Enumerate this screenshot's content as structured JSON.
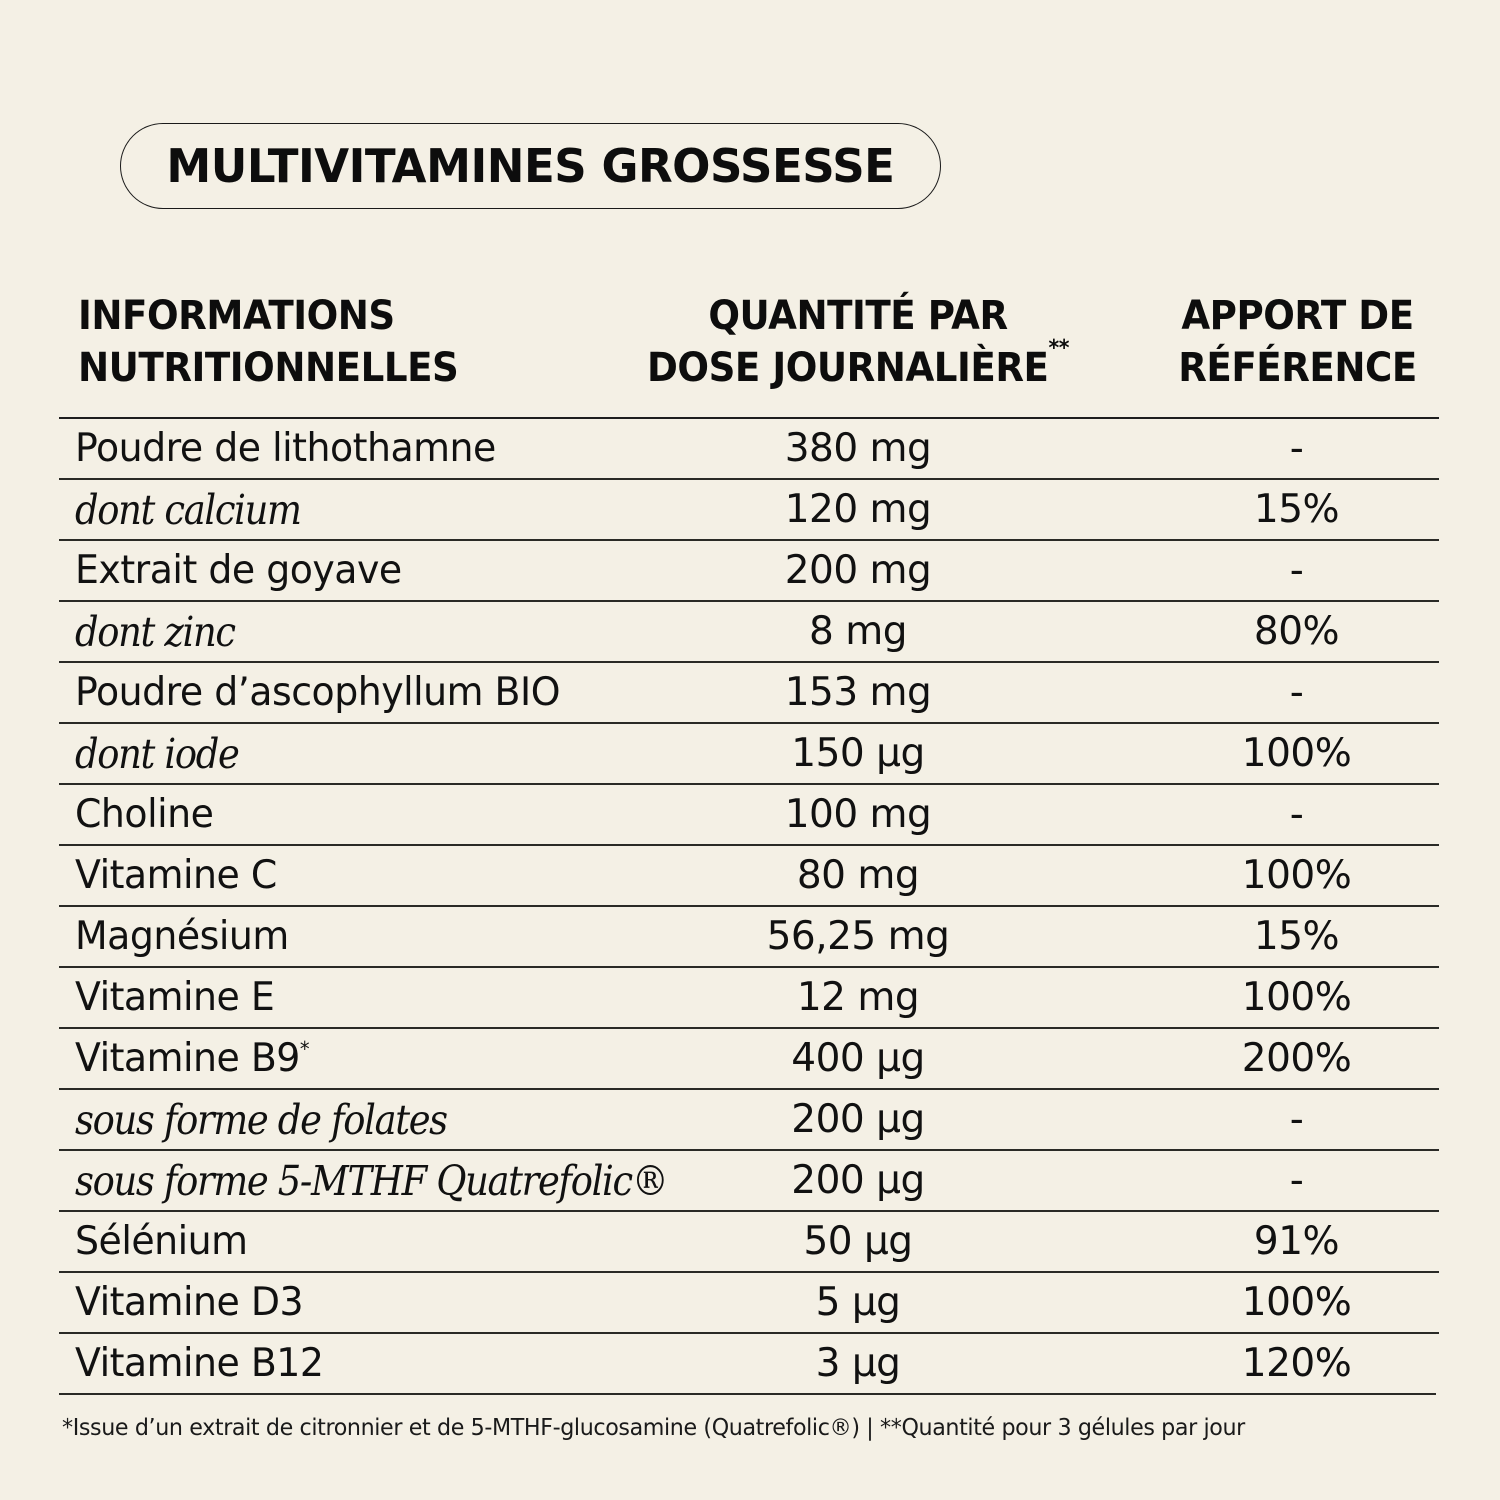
{
  "title": "MULTIVITAMINES GROSSESSE",
  "header": {
    "col_name": [
      "INFORMATIONS",
      "NUTRITIONNELLES"
    ],
    "col_qty": [
      "QUANTITÉ PAR",
      "DOSE JOURNALIÈRE"
    ],
    "col_qty_mark": "**",
    "col_ref": [
      "APPORT DE",
      "RÉFÉRENCE"
    ]
  },
  "rows": [
    {
      "name": "Poudre de lithothamne",
      "mark": "",
      "italic": false,
      "qty": "380 mg",
      "ref": "-"
    },
    {
      "name": "dont calcium",
      "mark": "",
      "italic": true,
      "qty": "120 mg",
      "ref": "15%"
    },
    {
      "name": "Extrait de goyave",
      "mark": "",
      "italic": false,
      "qty": "200 mg",
      "ref": "-"
    },
    {
      "name": "dont zinc",
      "mark": "",
      "italic": true,
      "qty": "8 mg",
      "ref": "80%"
    },
    {
      "name": "Poudre d’ascophyllum BIO",
      "mark": "",
      "italic": false,
      "qty": "153 mg",
      "ref": "-"
    },
    {
      "name": "dont iode",
      "mark": "",
      "italic": true,
      "qty": "150 µg",
      "ref": "100%"
    },
    {
      "name": "Choline",
      "mark": "",
      "italic": false,
      "qty": "100 mg",
      "ref": "-"
    },
    {
      "name": "Vitamine C",
      "mark": "",
      "italic": false,
      "qty": "80 mg",
      "ref": "100%"
    },
    {
      "name": "Magnésium",
      "mark": "",
      "italic": false,
      "qty": "56,25 mg",
      "ref": "15%"
    },
    {
      "name": "Vitamine E",
      "mark": "",
      "italic": false,
      "qty": "12 mg",
      "ref": "100%"
    },
    {
      "name": "Vitamine B9",
      "mark": "*",
      "italic": false,
      "qty": "400 µg",
      "ref": "200%"
    },
    {
      "name": "sous forme de folates",
      "mark": "",
      "italic": true,
      "qty": "200 µg",
      "ref": "-"
    },
    {
      "name": "sous forme 5-MTHF Quatrefolic®",
      "mark": "",
      "italic": true,
      "qty": "200 µg",
      "ref": "-"
    },
    {
      "name": "Sélénium",
      "mark": "",
      "italic": false,
      "qty": "50 µg",
      "ref": "91%"
    },
    {
      "name": "Vitamine D3",
      "mark": "",
      "italic": false,
      "qty": "5 µg",
      "ref": "100%"
    },
    {
      "name": "Vitamine B12",
      "mark": "",
      "italic": false,
      "qty": "3 µg",
      "ref": "120%"
    }
  ],
  "footnote": "*Issue d’un extrait de citronnier et de 5-MTHF-glucosamine (Quatrefolic®) | **Quantité pour 3 gélules par jour",
  "colors": {
    "background": "#f4f0e5",
    "text": "#111111",
    "rule": "#2a2a26"
  }
}
